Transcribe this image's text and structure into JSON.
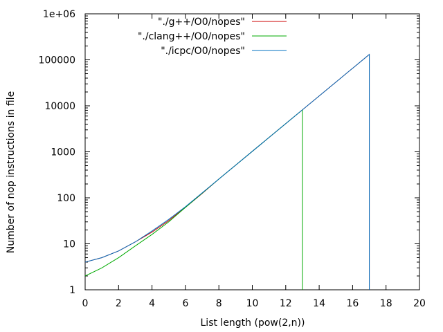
{
  "chart_data": {
    "type": "line",
    "title": "",
    "xlabel": "List length (pow(2,n))",
    "ylabel": "Number of nop instructions in file",
    "xlim": [
      0,
      20
    ],
    "ylim": [
      1,
      1000000
    ],
    "yscale": "log",
    "x_ticks": [
      0,
      2,
      4,
      6,
      8,
      10,
      12,
      14,
      16,
      18,
      20
    ],
    "x_tick_labels": [
      "0",
      "2",
      "4",
      "6",
      "8",
      "10",
      "12",
      "14",
      "16",
      "18",
      "20"
    ],
    "y_ticks": [
      1,
      10,
      100,
      1000,
      10000,
      100000,
      1000000
    ],
    "y_tick_labels": [
      "1",
      "10",
      "100",
      "1000",
      "10000",
      "100000",
      "1e+06"
    ],
    "grid": false,
    "legend_position": "top-right",
    "series": [
      {
        "name": "\"./g++/O0/nopes\"",
        "color": "#cc0000",
        "x": [
          0,
          1,
          2,
          3,
          4,
          5,
          6,
          7,
          8,
          9,
          10,
          11,
          12,
          13,
          14,
          15,
          16,
          17
        ],
        "y": [
          4,
          5,
          7,
          11,
          18,
          32,
          62,
          124,
          256,
          512,
          1024,
          2048,
          4096,
          8192,
          16384,
          32768,
          65536,
          131072
        ],
        "drop_to_axis": true
      },
      {
        "name": "\"./clang++/O0/nopes\"",
        "color": "#00aa00",
        "x": [
          0,
          1,
          2,
          3,
          4,
          5,
          6,
          7,
          8,
          9,
          10,
          11,
          12,
          13
        ],
        "y": [
          2,
          3,
          5,
          9,
          16,
          30,
          62,
          126,
          256,
          512,
          1024,
          2048,
          4096,
          8192
        ],
        "drop_to_axis": true
      },
      {
        "name": "\"./icpc/O0/nopes\"",
        "color": "#0070c0",
        "x": [
          0,
          1,
          2,
          3,
          4,
          5,
          6,
          7,
          8,
          9,
          10,
          11,
          12,
          13,
          14,
          15,
          16,
          17
        ],
        "y": [
          4,
          5,
          7,
          11,
          19,
          34,
          64,
          128,
          256,
          512,
          1024,
          2048,
          4096,
          8192,
          16384,
          32768,
          65536,
          131072
        ],
        "drop_to_axis": true
      }
    ]
  }
}
